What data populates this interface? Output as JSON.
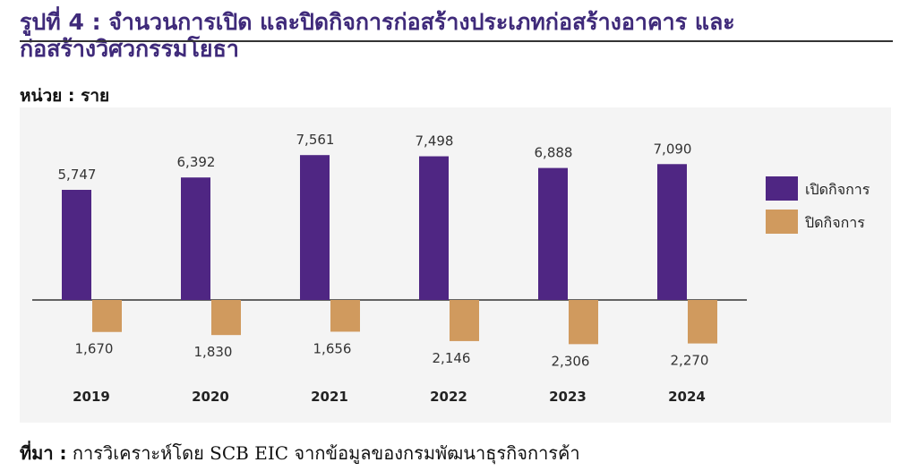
{
  "title": {
    "line1": "รูปที่ 4 : จำนวนการเปิด และปิดกิจการก่อสร้างประเภทก่อสร้างอาคาร และ",
    "line2": "ก่อสร้างวิศวกรรมโยธา"
  },
  "unit_label": "หน่วย : ราย",
  "source": {
    "label": "ที่มา :",
    "text": "การวิเคราะห์โดย SCB EIC จากข้อมูลของกรมพัฒนาธุรกิจการค้า"
  },
  "colors": {
    "open": "#4f2683",
    "close": "#d09a5e",
    "background": "#f4f4f4"
  },
  "chart_data": {
    "type": "bar",
    "categories": [
      "2019",
      "2020",
      "2021",
      "2022",
      "2023",
      "2024"
    ],
    "series": [
      {
        "name": "เปิดกิจการ",
        "values": [
          5747,
          6392,
          7561,
          7498,
          6888,
          7090
        ],
        "labels": [
          "5,747",
          "6,392",
          "7,561",
          "7,498",
          "6,888",
          "7,090"
        ]
      },
      {
        "name": "ปิดกิจการ",
        "values": [
          -1670,
          -1830,
          -1656,
          -2146,
          -2306,
          -2270
        ],
        "labels": [
          "1,670",
          "1,830",
          "1,656",
          "2,146",
          "2,306",
          "2,270"
        ]
      }
    ],
    "legend_position": "right",
    "grid": false
  }
}
